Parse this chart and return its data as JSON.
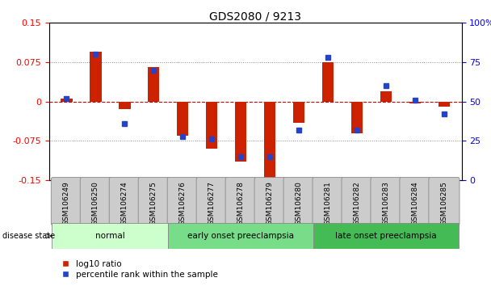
{
  "title": "GDS2080 / 9213",
  "samples": [
    "GSM106249",
    "GSM106250",
    "GSM106274",
    "GSM106275",
    "GSM106276",
    "GSM106277",
    "GSM106278",
    "GSM106279",
    "GSM106280",
    "GSM106281",
    "GSM106282",
    "GSM106283",
    "GSM106284",
    "GSM106285"
  ],
  "log10_ratio": [
    0.005,
    0.095,
    -0.015,
    0.065,
    -0.065,
    -0.09,
    -0.115,
    -0.145,
    -0.04,
    0.075,
    -0.06,
    0.02,
    -0.003,
    -0.01
  ],
  "percentile_rank": [
    52,
    80,
    36,
    70,
    28,
    26,
    15,
    15,
    32,
    78,
    32,
    60,
    51,
    42
  ],
  "groups": [
    {
      "label": "normal",
      "start": 0,
      "end": 4
    },
    {
      "label": "early onset preeclampsia",
      "start": 4,
      "end": 9
    },
    {
      "label": "late onset preeclampsia",
      "start": 9,
      "end": 14
    }
  ],
  "group_colors": [
    "#ccffcc",
    "#77dd88",
    "#44bb55"
  ],
  "ylim_left": [
    -0.15,
    0.15
  ],
  "ylim_right": [
    0,
    100
  ],
  "yticks_left": [
    -0.15,
    -0.075,
    0,
    0.075,
    0.15
  ],
  "ytick_labels_left": [
    "-0.15",
    "-0.075",
    "0",
    "0.075",
    "0.15"
  ],
  "yticks_right": [
    0,
    25,
    50,
    75,
    100
  ],
  "ytick_labels_right": [
    "0",
    "25",
    "50",
    "75",
    "100%"
  ],
  "bar_color_red": "#cc2200",
  "bar_color_blue": "#2244cc",
  "zero_line_color": "#cc0000",
  "dotted_line_color": "#888888",
  "background_color": "#ffffff",
  "bar_width": 0.4,
  "marker_size": 5
}
